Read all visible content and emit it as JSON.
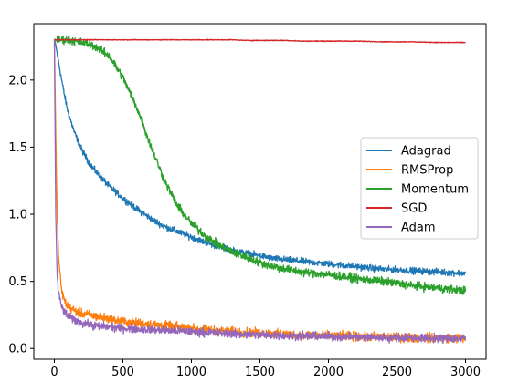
{
  "chart_data": {
    "type": "line",
    "title": "",
    "xlabel": "",
    "ylabel": "",
    "xlim": [
      -150,
      3150
    ],
    "ylim": [
      -0.08,
      2.42
    ],
    "x_ticks": [
      0,
      500,
      1000,
      1500,
      2000,
      2500,
      3000
    ],
    "y_ticks": [
      0.0,
      0.5,
      1.0,
      1.5,
      2.0
    ],
    "x_tick_labels": [
      "0",
      "500",
      "1000",
      "1500",
      "2000",
      "2500",
      "3000"
    ],
    "y_tick_labels": [
      "0.0",
      "0.5",
      "1.0",
      "1.5",
      "2.0"
    ],
    "grid": false,
    "legend_position": "center-right",
    "x": [
      0,
      10,
      20,
      30,
      50,
      75,
      100,
      150,
      200,
      250,
      300,
      400,
      500,
      600,
      700,
      800,
      900,
      1000,
      1100,
      1200,
      1300,
      1400,
      1500,
      1600,
      1700,
      1800,
      1900,
      2000,
      2200,
      2400,
      2600,
      2800,
      3000
    ],
    "series": [
      {
        "name": "Adagrad",
        "color": "#1f77b4",
        "noise": 0.035,
        "values": [
          2.3,
          2.26,
          2.2,
          2.14,
          2.02,
          1.88,
          1.76,
          1.6,
          1.48,
          1.39,
          1.32,
          1.21,
          1.12,
          1.04,
          0.97,
          0.91,
          0.87,
          0.83,
          0.79,
          0.76,
          0.73,
          0.71,
          0.69,
          0.67,
          0.66,
          0.65,
          0.64,
          0.63,
          0.61,
          0.59,
          0.58,
          0.57,
          0.56
        ]
      },
      {
        "name": "RMSProp",
        "color": "#ff7f0e",
        "noise": 0.05,
        "values": [
          2.3,
          1.6,
          1.0,
          0.7,
          0.45,
          0.35,
          0.31,
          0.28,
          0.26,
          0.25,
          0.24,
          0.22,
          0.2,
          0.19,
          0.18,
          0.17,
          0.16,
          0.15,
          0.14,
          0.13,
          0.125,
          0.12,
          0.115,
          0.11,
          0.105,
          0.1,
          0.1,
          0.095,
          0.09,
          0.085,
          0.08,
          0.08,
          0.075
        ]
      },
      {
        "name": "Momentum",
        "color": "#2ca02c",
        "noise": 0.045,
        "values": [
          2.3,
          2.3,
          2.3,
          2.3,
          2.3,
          2.3,
          2.3,
          2.29,
          2.28,
          2.27,
          2.25,
          2.18,
          2.02,
          1.8,
          1.52,
          1.26,
          1.06,
          0.93,
          0.84,
          0.77,
          0.72,
          0.68,
          0.64,
          0.61,
          0.59,
          0.57,
          0.56,
          0.55,
          0.52,
          0.5,
          0.47,
          0.45,
          0.43
        ]
      },
      {
        "name": "SGD",
        "color": "#d62728",
        "noise": 0.004,
        "values": [
          2.3,
          2.3,
          2.3,
          2.3,
          2.3,
          2.3,
          2.3,
          2.3,
          2.3,
          2.3,
          2.3,
          2.3,
          2.3,
          2.3,
          2.3,
          2.3,
          2.3,
          2.3,
          2.3,
          2.3,
          2.3,
          2.295,
          2.295,
          2.295,
          2.295,
          2.29,
          2.29,
          2.29,
          2.29,
          2.285,
          2.285,
          2.28,
          2.28
        ]
      },
      {
        "name": "Adam",
        "color": "#9467bd",
        "noise": 0.045,
        "values": [
          2.3,
          1.0,
          0.55,
          0.42,
          0.32,
          0.27,
          0.24,
          0.21,
          0.19,
          0.18,
          0.17,
          0.16,
          0.15,
          0.145,
          0.14,
          0.135,
          0.13,
          0.125,
          0.12,
          0.115,
          0.11,
          0.105,
          0.1,
          0.1,
          0.095,
          0.095,
          0.09,
          0.09,
          0.085,
          0.08,
          0.08,
          0.075,
          0.075
        ]
      }
    ]
  }
}
